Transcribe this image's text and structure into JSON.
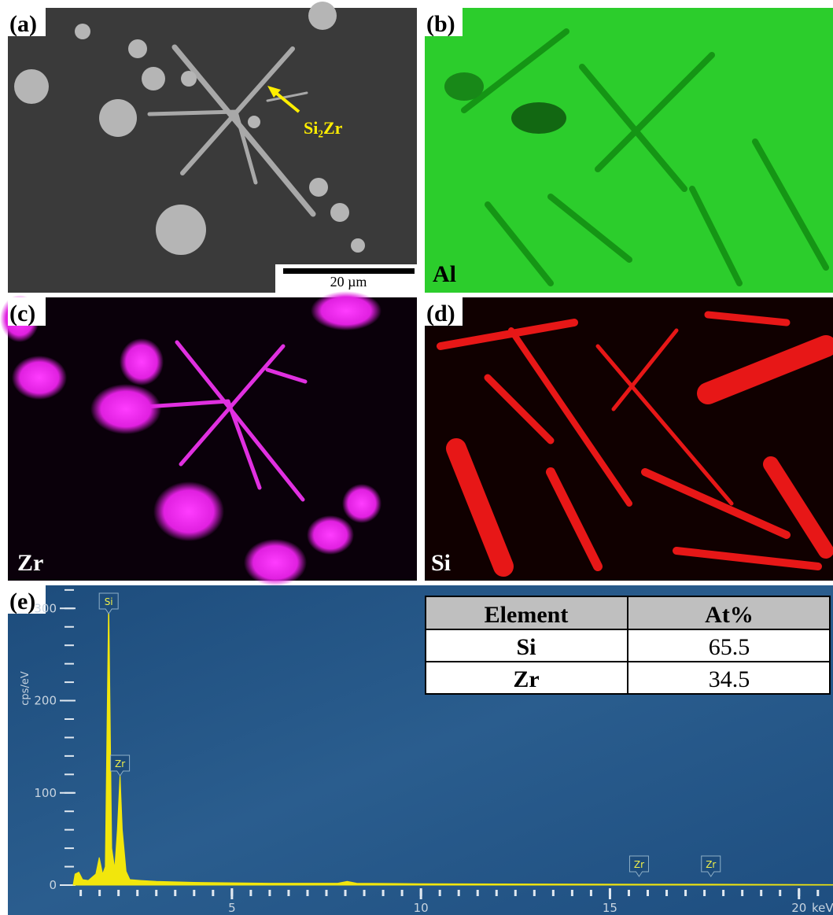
{
  "panels": {
    "a": {
      "label": "(a)",
      "annotation": "Si₂Zr",
      "scale_bar": "20 µm"
    },
    "b": {
      "label": "(b)",
      "element": "Al"
    },
    "c": {
      "label": "(c)",
      "element": "Zr"
    },
    "d": {
      "label": "(d)",
      "element": "Si"
    },
    "e": {
      "label": "(e)"
    }
  },
  "chart_data": {
    "type": "area",
    "y_label": "cps/eV",
    "x_label": "keV",
    "xlim": [
      0.8,
      20.9
    ],
    "ylim": [
      0,
      325
    ],
    "xticks": [
      5,
      10,
      15,
      20
    ],
    "yticks": [
      0,
      100,
      200,
      300
    ],
    "series": [
      {
        "color": "#f2e60c",
        "x": [
          0.8,
          0.85,
          0.95,
          1.05,
          1.2,
          1.4,
          1.49,
          1.58,
          1.65,
          1.74,
          1.82,
          1.9,
          1.97,
          2.04,
          2.1,
          2.2,
          2.3,
          2.6,
          3,
          4,
          6,
          7.8,
          8.05,
          8.3,
          10,
          15.77,
          17.67,
          20.9
        ],
        "values": [
          0,
          12,
          14,
          6,
          5,
          12,
          30,
          12,
          20,
          315,
          40,
          18,
          60,
          120,
          60,
          15,
          6,
          5,
          4,
          3,
          2,
          2,
          4,
          2,
          1.5,
          1,
          1,
          0.5
        ]
      }
    ],
    "peak_labels": [
      {
        "label": "Si",
        "x": 1.74
      },
      {
        "label": "Zr",
        "x": 2.04
      },
      {
        "label": "Zr",
        "x": 15.77
      },
      {
        "label": "Zr",
        "x": 17.67
      }
    ]
  },
  "table": {
    "header": [
      "Element",
      "At%"
    ],
    "rows": [
      [
        "Si",
        "65.5"
      ],
      [
        "Zr",
        "34.5"
      ]
    ]
  }
}
